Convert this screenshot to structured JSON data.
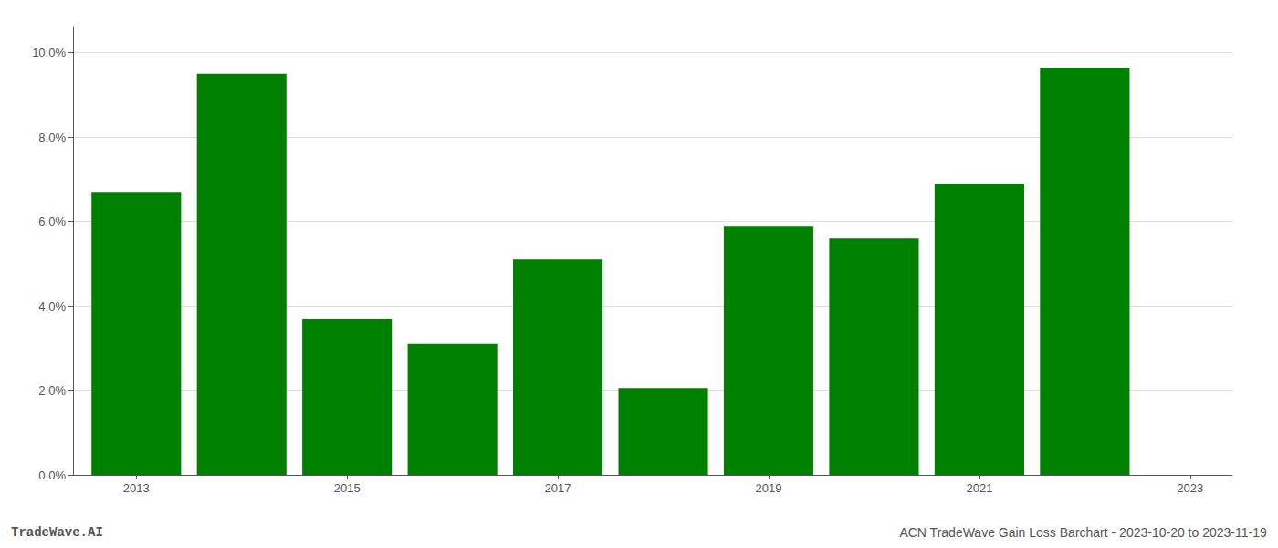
{
  "chart_data": {
    "type": "bar",
    "x": [
      2013,
      2014,
      2015,
      2016,
      2017,
      2018,
      2019,
      2020,
      2021,
      2022
    ],
    "values": [
      0.067,
      0.095,
      0.037,
      0.031,
      0.051,
      0.0205,
      0.059,
      0.056,
      0.069,
      0.0965
    ],
    "color": "#008000",
    "xlim": [
      2012.4,
      2023.4
    ],
    "xticks": [
      2013,
      2015,
      2017,
      2019,
      2021,
      2023
    ],
    "ylim": [
      0,
      0.106
    ],
    "yticks": [
      {
        "value": 0.0,
        "label": "0.0%"
      },
      {
        "value": 0.02,
        "label": "2.0%"
      },
      {
        "value": 0.04,
        "label": "4.0%"
      },
      {
        "value": 0.06,
        "label": "6.0%"
      },
      {
        "value": 0.08,
        "label": "8.0%"
      },
      {
        "value": 0.1,
        "label": "10.0%"
      }
    ],
    "grid": true,
    "annotations": [
      "TradeWave.AI",
      "ACN TradeWave Gain Loss Barchart - 2023-10-20 to 2023-11-19"
    ]
  }
}
